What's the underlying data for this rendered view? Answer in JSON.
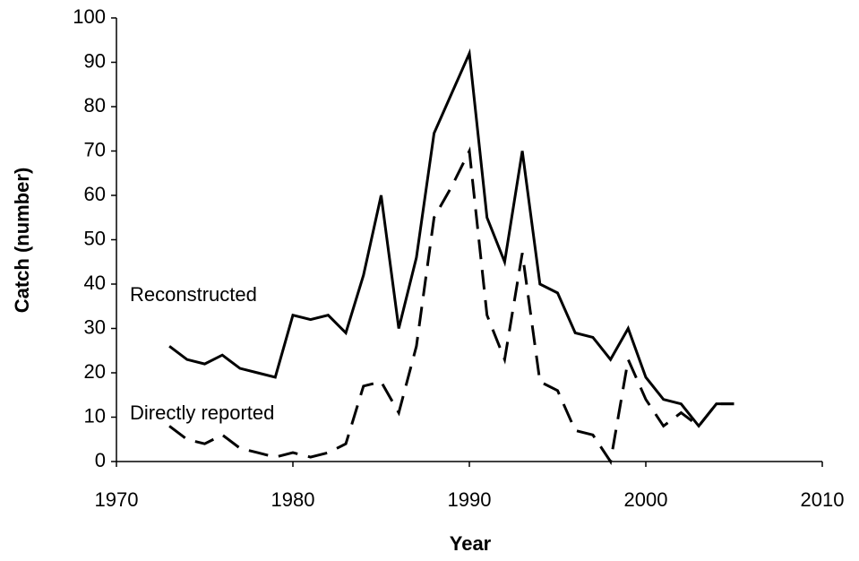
{
  "chart_data": {
    "type": "line",
    "x_label": "Year",
    "y_label": "Catch (number)",
    "x": [
      1973,
      1974,
      1975,
      1976,
      1977,
      1978,
      1979,
      1980,
      1981,
      1982,
      1983,
      1984,
      1985,
      1986,
      1987,
      1988,
      1989,
      1990,
      1991,
      1992,
      1993,
      1994,
      1995,
      1996,
      1997,
      1998,
      1999,
      2000,
      2001,
      2002,
      2003,
      2004,
      2005
    ],
    "series": [
      {
        "name": "Reconstructed",
        "color": "#000000",
        "line_style": "solid",
        "values": [
          26,
          23,
          22,
          24,
          21,
          20,
          19,
          33,
          32,
          33,
          29,
          42,
          60,
          30,
          46,
          74,
          83,
          92,
          55,
          45,
          70,
          40,
          38,
          29,
          28,
          23,
          30,
          19,
          14,
          13,
          8,
          13,
          13
        ]
      },
      {
        "name": "Directly reported",
        "color": "#000000",
        "line_style": "dashed",
        "values": [
          8,
          5,
          4,
          6,
          3,
          2,
          1,
          2,
          1,
          2,
          4,
          17,
          18,
          11,
          26,
          55,
          62,
          70,
          33,
          23,
          47,
          18,
          16,
          7,
          6,
          0,
          23,
          14,
          8,
          11,
          8,
          13,
          13
        ]
      }
    ],
    "xlim": [
      1970,
      2010
    ],
    "xticks": [
      1970,
      1980,
      1990,
      2000,
      2010
    ],
    "ylim": [
      0,
      100
    ],
    "yticks": [
      0,
      10,
      20,
      30,
      40,
      50,
      60,
      70,
      80,
      90,
      100
    ],
    "grid": false,
    "legend": "inline"
  }
}
